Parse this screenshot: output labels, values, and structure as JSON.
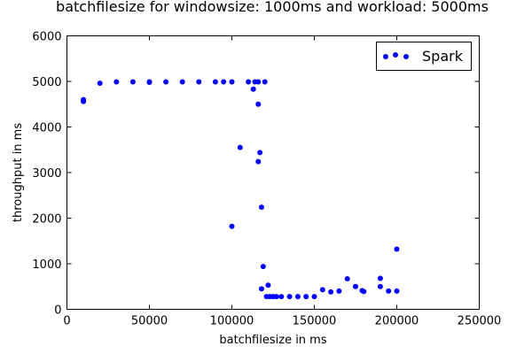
{
  "chart_data": {
    "type": "scatter",
    "title": "batchfilesize for windowsize: 1000ms and workload: 5000ms",
    "xlabel": "batchfilesize in ms",
    "ylabel": "throughput in ms",
    "xlim": [
      0,
      250000
    ],
    "ylim": [
      0,
      6000
    ],
    "xticks": [
      0,
      50000,
      100000,
      150000,
      200000,
      250000
    ],
    "yticks": [
      0,
      1000,
      2000,
      3000,
      4000,
      5000,
      6000
    ],
    "grid": false,
    "legend_position": "top-right",
    "series": [
      {
        "name": "Spark",
        "color": "#0000ff",
        "points": [
          [
            10000,
            4600
          ],
          [
            10000,
            4560
          ],
          [
            20000,
            4960
          ],
          [
            30000,
            4990
          ],
          [
            40000,
            4990
          ],
          [
            50000,
            4990
          ],
          [
            50000,
            4980
          ],
          [
            60000,
            4990
          ],
          [
            70000,
            4990
          ],
          [
            80000,
            4990
          ],
          [
            90000,
            4990
          ],
          [
            95000,
            4990
          ],
          [
            100000,
            4990
          ],
          [
            110000,
            4990
          ],
          [
            113000,
            4830
          ],
          [
            114000,
            4990
          ],
          [
            116000,
            4990
          ],
          [
            120000,
            4990
          ],
          [
            116000,
            4500
          ],
          [
            105000,
            3550
          ],
          [
            117000,
            3440
          ],
          [
            116000,
            3240
          ],
          [
            118000,
            2240
          ],
          [
            100000,
            1820
          ],
          [
            119000,
            940
          ],
          [
            118000,
            450
          ],
          [
            122000,
            530
          ],
          [
            121000,
            280
          ],
          [
            123000,
            280
          ],
          [
            125000,
            280
          ],
          [
            127000,
            280
          ],
          [
            130000,
            280
          ],
          [
            135000,
            280
          ],
          [
            140000,
            280
          ],
          [
            145000,
            280
          ],
          [
            150000,
            280
          ],
          [
            155000,
            430
          ],
          [
            160000,
            380
          ],
          [
            165000,
            400
          ],
          [
            170000,
            670
          ],
          [
            175000,
            500
          ],
          [
            179000,
            410
          ],
          [
            180000,
            390
          ],
          [
            190000,
            680
          ],
          [
            190000,
            500
          ],
          [
            195000,
            400
          ],
          [
            200000,
            400
          ],
          [
            200000,
            1320
          ]
        ]
      }
    ]
  }
}
